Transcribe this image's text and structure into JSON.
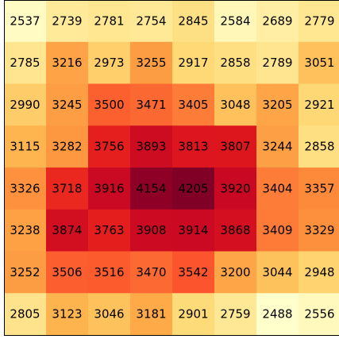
{
  "chart_data": {
    "type": "heatmap",
    "title": "",
    "xlabel": "",
    "ylabel": "",
    "colormap": "YlOrRd",
    "vmin": 2488,
    "vmax": 4205,
    "grid": false,
    "rows": [
      [
        2537,
        2739,
        2781,
        2754,
        2845,
        2584,
        2689,
        2779
      ],
      [
        2785,
        3216,
        2973,
        3255,
        2917,
        2858,
        2789,
        3051
      ],
      [
        2990,
        3245,
        3500,
        3471,
        3405,
        3048,
        3205,
        2921
      ],
      [
        3115,
        3282,
        3756,
        3893,
        3813,
        3807,
        3244,
        2858
      ],
      [
        3326,
        3718,
        3916,
        4154,
        4205,
        3920,
        3404,
        3357
      ],
      [
        3238,
        3874,
        3763,
        3908,
        3914,
        3868,
        3409,
        3329
      ],
      [
        3252,
        3506,
        3516,
        3470,
        3542,
        3200,
        3044,
        2948
      ],
      [
        2805,
        3123,
        3046,
        3181,
        2901,
        2759,
        2488,
        2556
      ]
    ]
  }
}
